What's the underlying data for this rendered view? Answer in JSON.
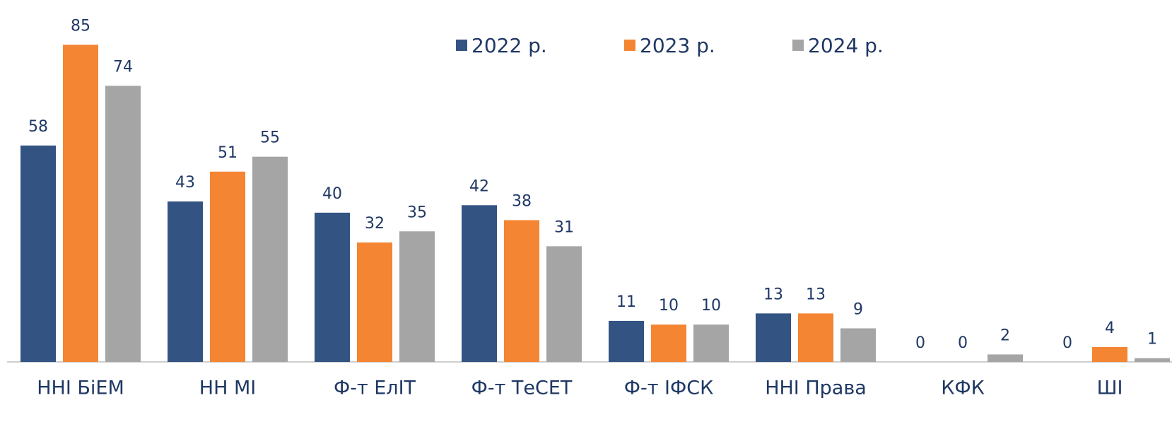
{
  "chart_data": {
    "type": "bar",
    "categories": [
      "ННІ БіЕМ",
      "НН МІ",
      "Ф-т ЕлІТ",
      "Ф-т ТеСЕТ",
      "Ф-т ІФСК",
      "ННІ Права",
      "КФК",
      "ШІ"
    ],
    "series": [
      {
        "name": "2022 р.",
        "color": "#335383",
        "values": [
          58,
          43,
          40,
          42,
          11,
          13,
          0,
          0
        ]
      },
      {
        "name": "2023 р.",
        "color": "#f48533",
        "values": [
          85,
          51,
          32,
          38,
          10,
          13,
          0,
          4
        ]
      },
      {
        "name": "2024 р.",
        "color": "#a5a5a5",
        "values": [
          74,
          55,
          35,
          31,
          10,
          9,
          2,
          1
        ]
      }
    ],
    "ylim": [
      0,
      97
    ]
  }
}
